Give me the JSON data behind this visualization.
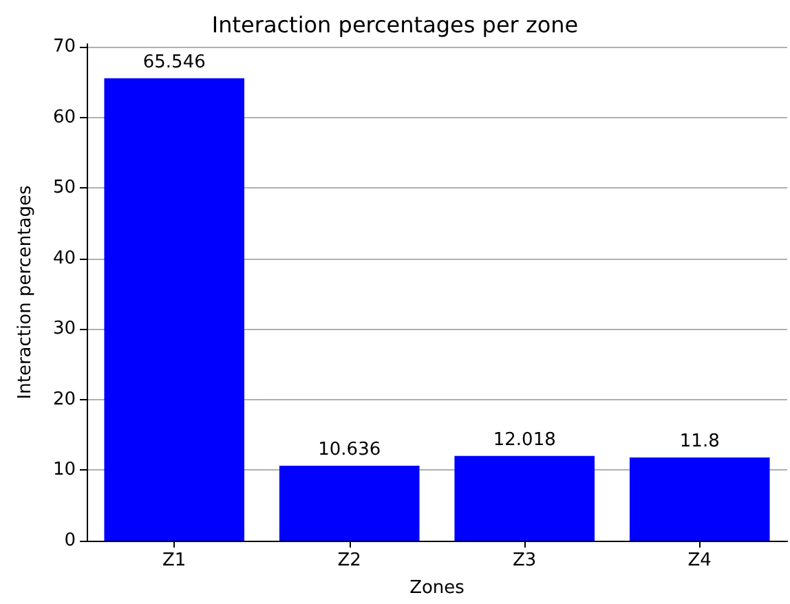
{
  "chart_data": {
    "type": "bar",
    "title": "Interaction percentages per zone",
    "xlabel": "Zones",
    "ylabel": "Interaction percentages",
    "categories": [
      "Z1",
      "Z2",
      "Z3",
      "Z4"
    ],
    "values": [
      65.546,
      10.636,
      12.018,
      11.8
    ],
    "color": "#0000ff",
    "ylim": [
      0,
      70.4
    ],
    "yticks": [
      0,
      10,
      20,
      30,
      40,
      50,
      60,
      70
    ],
    "grid": "y",
    "data_labels": true
  }
}
